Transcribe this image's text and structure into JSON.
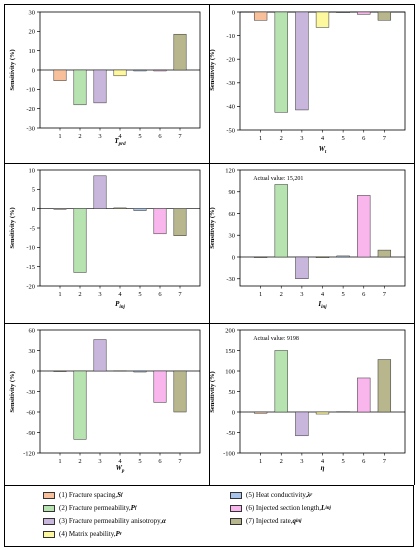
{
  "chart_data": [
    {
      "type": "bar",
      "categories": [
        "1",
        "2",
        "3",
        "4",
        "5",
        "6",
        "7"
      ],
      "values": [
        -5.5,
        -18,
        -17,
        -3,
        -0.5,
        -0.5,
        18.5
      ],
      "xlabel": "T_prd",
      "ylabel": "Sensitivity (%)",
      "ylim": [
        -30,
        30
      ],
      "yticks": [
        -30,
        -20,
        -10,
        0,
        10,
        20,
        30
      ]
    },
    {
      "type": "bar",
      "categories": [
        "1",
        "2",
        "3",
        "4",
        "5",
        "6",
        "7"
      ],
      "values": [
        -3.5,
        -42.5,
        -41.5,
        -6.5,
        -0.3,
        -1,
        -3.5
      ],
      "xlabel": "W_t",
      "ylabel": "Sensitivity (%)",
      "ylim": [
        -50,
        0
      ],
      "yticks": [
        -50,
        -40,
        -30,
        -20,
        -10,
        0
      ]
    },
    {
      "type": "bar",
      "categories": [
        "1",
        "2",
        "3",
        "4",
        "5",
        "6",
        "7"
      ],
      "values": [
        0,
        -16.5,
        8.5,
        0.2,
        -0.5,
        -6.5,
        -7
      ],
      "xlabel": "P_inj",
      "ylabel": "Sensitivity (%)",
      "ylim": [
        -20,
        10
      ],
      "yticks": [
        -20,
        -15,
        -10,
        -5,
        0,
        5,
        10
      ]
    },
    {
      "type": "bar",
      "categories": [
        "1",
        "2",
        "3",
        "4",
        "5",
        "6",
        "7"
      ],
      "values": [
        0,
        100,
        -30,
        -1,
        1.5,
        85,
        9.5
      ],
      "xlabel": "I_inj",
      "ylabel": "Sensitivity (%)",
      "ylim": [
        -40,
        120
      ],
      "yticks": [
        -30,
        0,
        30,
        60,
        90,
        120
      ],
      "annotation": "Actual value: 15,201"
    },
    {
      "type": "bar",
      "categories": [
        "1",
        "2",
        "3",
        "4",
        "5",
        "6",
        "7"
      ],
      "values": [
        0,
        -100,
        46,
        0.5,
        -1.5,
        -46,
        -60
      ],
      "xlabel": "W_p",
      "ylabel": "Sensitivity (%)",
      "ylim": [
        -120,
        60
      ],
      "yticks": [
        -120,
        -90,
        -60,
        -30,
        0,
        30,
        60
      ]
    },
    {
      "type": "bar",
      "categories": [
        "1",
        "2",
        "3",
        "4",
        "5",
        "6",
        "7"
      ],
      "values": [
        -3,
        150,
        -58,
        -5,
        1,
        83,
        128
      ],
      "xlabel": "η",
      "ylabel": "Sensitivity (%)",
      "ylim": [
        -100,
        200
      ],
      "yticks": [
        -100,
        -50,
        0,
        50,
        100,
        150,
        200
      ],
      "annotation": "Actual value: 9198"
    }
  ],
  "legend": [
    {
      "text": "(1) Fracture spacing, ",
      "sym": "S",
      "sub": "f",
      "color": "#f7c09b"
    },
    {
      "text": "(2) Fracture permeability, ",
      "sym": "P",
      "sub": "f",
      "color": "#b6e3b0"
    },
    {
      "text": "(3) Fracture permeability anisotropy, ",
      "sym": "α",
      "sub": "",
      "color": "#c9b6dc"
    },
    {
      "text": "(4) Matrix peability, ",
      "sym": "P",
      "sub": "r",
      "color": "#fdf79d"
    },
    {
      "text": "(5) Heat conductivity, ",
      "sym": "λ",
      "sub": "r",
      "color": "#a9c4ea"
    },
    {
      "text": "(6) Injected section length, ",
      "sym": "L",
      "sub": "inj",
      "color": "#f8b6ec"
    },
    {
      "text": "(7) Injected rate, ",
      "sym": "q",
      "sub": "inj",
      "color": "#b7b68d"
    }
  ]
}
